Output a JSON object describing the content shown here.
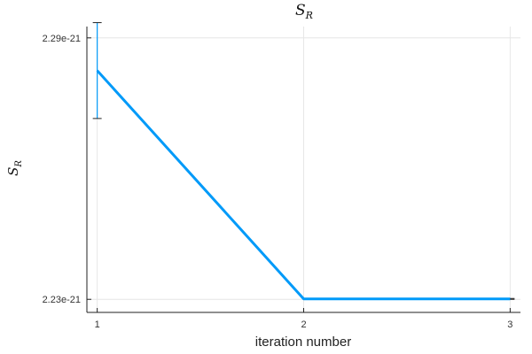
{
  "chart_data": {
    "type": "line",
    "title": {
      "main": "S",
      "sub": "R"
    },
    "xlabel": "iteration number",
    "ylabel": {
      "main": "S",
      "sub": "R"
    },
    "x": [
      1,
      2,
      3
    ],
    "x_ticks": [
      1,
      2,
      3
    ],
    "x_tick_labels": [
      "1",
      "2",
      "3"
    ],
    "xlim": [
      0.95,
      3.05
    ],
    "y_ticks": [
      2.29e-21,
      2.23e-21
    ],
    "y_tick_labels": [
      "2.29e-21",
      "2.23e-21"
    ],
    "ylim": [
      2.227e-21,
      2.2926e-21
    ],
    "grid": true,
    "legend": "none",
    "series": [
      {
        "values": [
          2.2825e-21,
          2.2301e-21,
          2.2301e-21
        ],
        "error_bars": [
          {
            "x": 1,
            "low": 2.2715e-21,
            "high": 2.2935e-21
          },
          {
            "x": 3,
            "low": 2.23e-21,
            "high": 2.2302e-21
          }
        ],
        "color": "#009af9"
      }
    ],
    "colors": {
      "series": "#009af9",
      "grid": "#e6e6e6",
      "axis": "#222222"
    }
  }
}
